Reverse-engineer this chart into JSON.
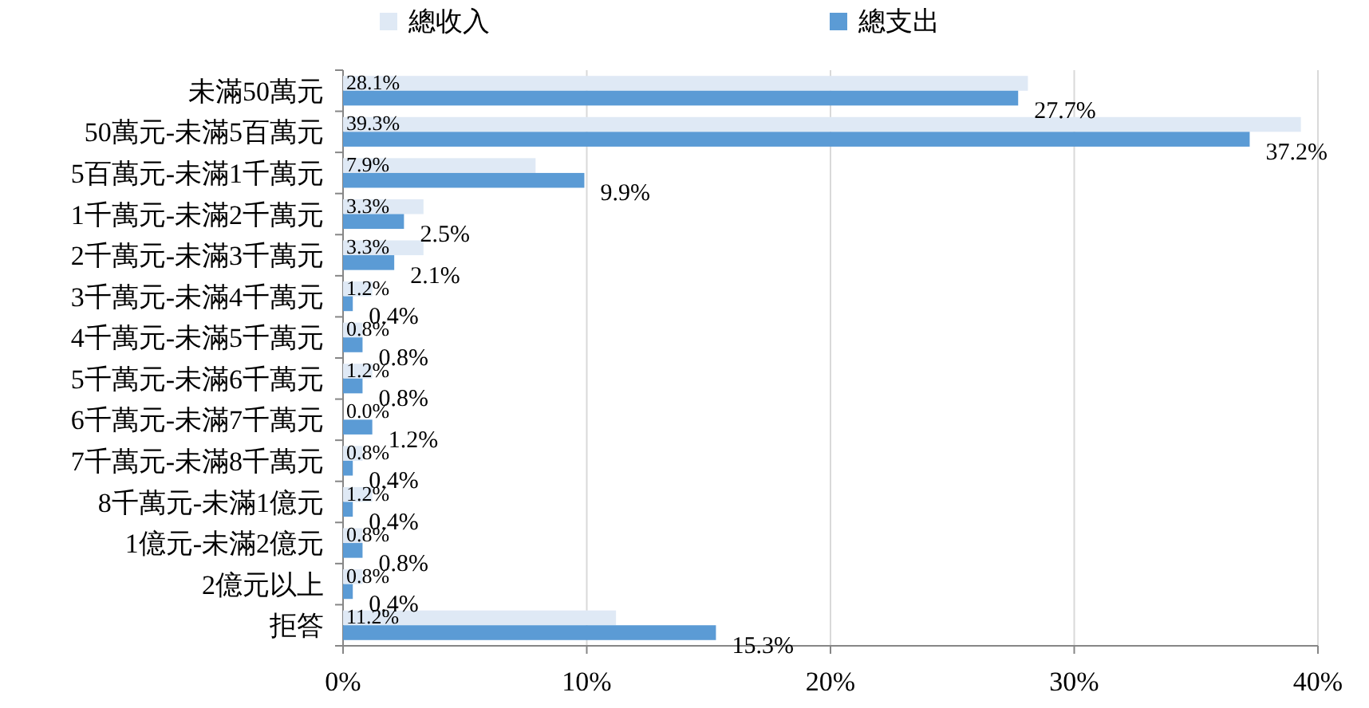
{
  "chart_data": {
    "type": "bar",
    "orientation": "horizontal",
    "categories": [
      "未滿50萬元",
      "50萬元-未滿5百萬元",
      "5百萬元-未滿1千萬元",
      "1千萬元-未滿2千萬元",
      "2千萬元-未滿3千萬元",
      "3千萬元-未滿4千萬元",
      "4千萬元-未滿5千萬元",
      "5千萬元-未滿6千萬元",
      "6千萬元-未滿7千萬元",
      "7千萬元-未滿8千萬元",
      "8千萬元-未滿1億元",
      "1億元-未滿2億元",
      "2億元以上",
      "拒答"
    ],
    "series": [
      {
        "name": "總收入",
        "color": "#dfe9f5",
        "values": [
          28.1,
          39.3,
          7.9,
          3.3,
          3.3,
          1.2,
          0.8,
          1.2,
          0.0,
          0.8,
          1.2,
          0.8,
          0.8,
          11.2
        ],
        "value_labels": [
          "28.1%",
          "39.3%",
          "7.9%",
          "3.3%",
          "3.3%",
          "1.2%",
          "0.8%",
          "1.2%",
          "0.0%",
          "0.8%",
          "1.2%",
          "0.8%",
          "0.8%",
          "11.2%"
        ]
      },
      {
        "name": "總支出",
        "color": "#5b9bd5",
        "values": [
          27.7,
          37.2,
          9.9,
          2.5,
          2.1,
          0.4,
          0.8,
          0.8,
          1.2,
          0.4,
          0.4,
          0.8,
          0.4,
          15.3
        ],
        "value_labels": [
          "27.7%",
          "37.2%",
          "9.9%",
          "2.5%",
          "2.1%",
          "0.4%",
          "0.8%",
          "0.8%",
          "1.2%",
          "0.4%",
          "0.4%",
          "0.8%",
          "0.4%",
          "15.3%"
        ]
      }
    ],
    "xlim": [
      0,
      40
    ],
    "xticks": [
      {
        "value": 0,
        "label": "0%"
      },
      {
        "value": 10,
        "label": "10%"
      },
      {
        "value": 20,
        "label": "20%"
      },
      {
        "value": 30,
        "label": "30%"
      },
      {
        "value": 40,
        "label": "40%"
      }
    ],
    "grid": "x",
    "legend": "top"
  }
}
